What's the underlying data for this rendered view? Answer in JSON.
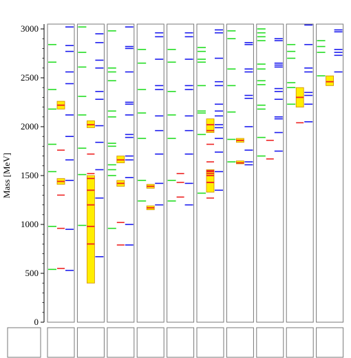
{
  "chart_data": {
    "type": "spectrum",
    "ylabel": "Mass [MeV]",
    "ylim": [
      0,
      3000
    ],
    "yticks": [
      0,
      500,
      1000,
      1500,
      2000,
      2500,
      3000
    ],
    "colors": {
      "green": "#22dd22",
      "red": "#ee2222",
      "blue": "#1a1aee",
      "box_fill": "#ffee00",
      "box_stroke": "#d08a00",
      "frame": "#777777"
    },
    "panels": [
      {
        "green": [
          2840,
          2660,
          2380,
          2180,
          1820,
          1540,
          980,
          540
        ],
        "red": [
          1760,
          1300,
          960,
          550
        ],
        "blue": [
          3020,
          2830,
          2770,
          2560,
          2440,
          2120,
          1900,
          1660,
          1450,
          950,
          530
        ],
        "boxes": [
          {
            "low": 2180,
            "high": 2260,
            "center": 2220
          },
          {
            "low": 1410,
            "high": 1470,
            "center": 1440
          }
        ]
      },
      {
        "green": [
          3020,
          2760,
          2610,
          2310,
          2120,
          1780,
          1510,
          990
        ],
        "red": [
          1720,
          1520
        ],
        "blue": [
          2950,
          2860,
          2680,
          2600,
          2360,
          2280,
          2010,
          1840,
          1560,
          1270,
          670
        ],
        "boxes": [
          {
            "low": 1990,
            "high": 2060,
            "center": 2020
          },
          {
            "low": 400,
            "high": 1500,
            "center": 980,
            "lines": [
              1470,
              1350,
              1200,
              980,
              800
            ]
          }
        ]
      },
      {
        "green": [
          2980,
          2600,
          2560,
          2470,
          2160,
          2100,
          1830,
          1800,
          1610,
          1560,
          1500,
          960
        ],
        "red": [
          1020,
          790
        ],
        "blue": [
          3020,
          2820,
          2800,
          2560,
          2250,
          2230,
          2120,
          1920,
          1890,
          1700,
          1660,
          1480,
          1000,
          790
        ],
        "boxes": [
          {
            "low": 1630,
            "high": 1700,
            "center": 1660
          },
          {
            "low": 1390,
            "high": 1450,
            "center": 1420
          }
        ]
      },
      {
        "green": [
          2790,
          2650,
          2380,
          2140,
          1880,
          1450,
          1240
        ],
        "red": [],
        "blue": [
          2960,
          2920,
          2690,
          2420,
          2380,
          2110,
          1960,
          1720,
          1420,
          1200
        ],
        "boxes": [
          {
            "low": 1370,
            "high": 1410,
            "center": 1390
          },
          {
            "low": 1150,
            "high": 1190,
            "center": 1170
          }
        ]
      },
      {
        "green": [
          2790,
          2660,
          2360,
          2120,
          1880,
          1450,
          1240
        ],
        "red": [
          1520,
          1430,
          1280
        ],
        "blue": [
          2960,
          2920,
          2690,
          2420,
          2380,
          2110,
          1960,
          1720,
          1420,
          1200
        ],
        "boxes": []
      },
      {
        "green": [
          2810,
          2770,
          2690,
          2660,
          2420,
          2160,
          2140,
          1920,
          1320
        ],
        "red": [
          1820,
          1640,
          1550,
          1520,
          1430,
          1270
        ],
        "blue": [
          2990,
          2960,
          2700,
          2460,
          2420,
          2230,
          2160,
          2110,
          2020,
          1990,
          1880,
          1740,
          1540,
          1350
        ],
        "boxes": [
          {
            "low": 1940,
            "high": 2080,
            "center": 2010,
            "lines": [
              2020,
              1960
            ]
          },
          {
            "low": 1330,
            "high": 1560,
            "center": 1440,
            "lines": [
              1540,
              1500,
              1430
            ]
          }
        ]
      },
      {
        "green": [
          2980,
          2900,
          2590,
          2420,
          2150,
          1870,
          1640
        ],
        "red": [],
        "blue": [
          2860,
          2840,
          2590,
          2560,
          2320,
          2290,
          2000,
          1760,
          1640,
          1610
        ],
        "boxes": [
          {
            "low": 1840,
            "high": 1880,
            "center": 1860
          },
          {
            "low": 1620,
            "high": 1650,
            "center": 1630
          }
        ]
      },
      {
        "green": [
          3000,
          2960,
          2920,
          2880,
          2640,
          2590,
          2470,
          2430,
          2220,
          2180,
          1890,
          1700
        ],
        "red": [
          1860,
          1670
        ],
        "blue": [
          2900,
          2880,
          2650,
          2630,
          2610,
          2390,
          2360,
          2280,
          2100,
          2080,
          1940,
          1750
        ],
        "boxes": []
      },
      {
        "green": [
          2840,
          2770,
          2700,
          2450,
          2400,
          2230
        ],
        "red": [
          2040
        ],
        "blue": [
          3040,
          2840,
          2600,
          2560,
          2350,
          2320,
          2230,
          2050
        ],
        "boxes": [
          {
            "low": 2200,
            "high": 2400,
            "center": 2300
          }
        ]
      },
      {
        "green": [
          2880,
          2820,
          2760,
          2520
        ],
        "red": [],
        "blue": [
          2990,
          2970,
          2790,
          2760,
          2730,
          2560
        ],
        "boxes": [
          {
            "low": 2420,
            "high": 2520,
            "center": 2460
          }
        ]
      }
    ]
  }
}
